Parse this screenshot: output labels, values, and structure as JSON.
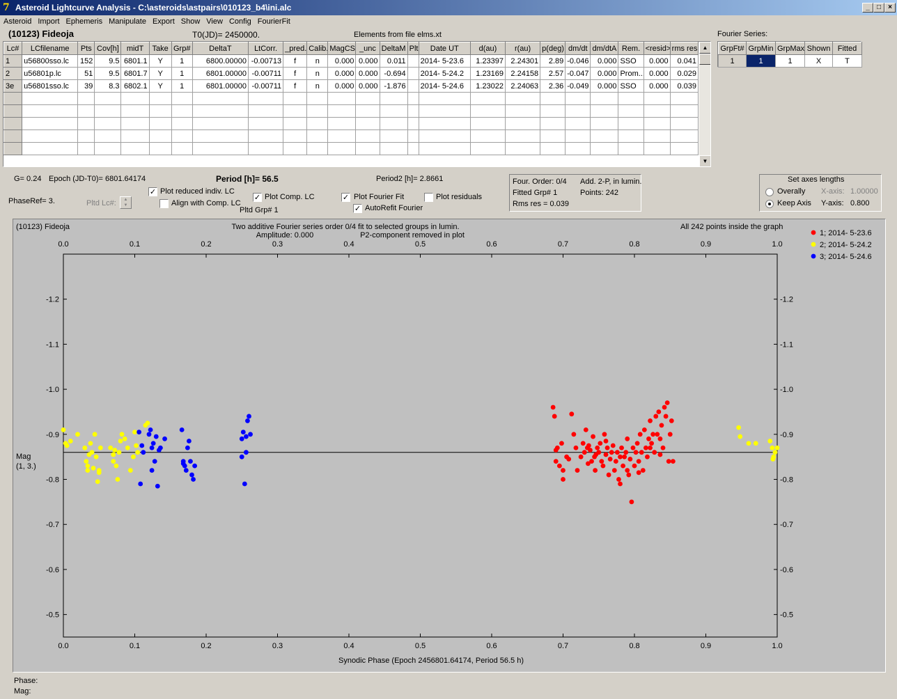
{
  "window": {
    "title": "Asteroid Lightcurve Analysis - C:\\asteroids\\astpairs\\010123_b4\\ini.alc",
    "logo": "7"
  },
  "menu": [
    "Asteroid",
    "Import",
    "Ephemeris",
    "Manipulate",
    "Export",
    "Show",
    "View",
    "Config",
    "FourierFit"
  ],
  "header": {
    "object": "(10123) Fideoja",
    "t0": "T0(JD)= 2450000.",
    "elements": "Elements from file elms.xt",
    "fourier_title": "Fourier Series:"
  },
  "lc_table": {
    "columns": [
      "Lc#",
      "LCfilename",
      "Pts",
      "Cov[h]",
      "midT",
      "Take",
      "Grp#",
      "DeltaT",
      "LtCorr.",
      "_pred.",
      "Calib.",
      "MagCS",
      "_unc",
      "DeltaM",
      "Plt",
      "Date UT",
      "d(au)",
      "r(au)",
      "p(deg)",
      "dm/dt",
      "dm/dtA",
      "Rem.",
      "<resid>",
      "rms res"
    ],
    "rows": [
      [
        "1",
        "u56800sso.lc",
        "152",
        "9.5",
        "6801.1",
        "Y",
        "1",
        "6800.00000",
        "-0.00713",
        "f",
        "n",
        "0.000",
        "0.000",
        "0.011",
        "",
        "2014- 5-23.6",
        "1.23397",
        "2.24301",
        "2.89",
        "-0.046",
        "0.000",
        "SSO",
        "0.000",
        "0.041"
      ],
      [
        "2",
        "u56801p.lc",
        "51",
        "9.5",
        "6801.7",
        "Y",
        "1",
        "6801.00000",
        "-0.00711",
        "f",
        "n",
        "0.000",
        "0.000",
        "-0.694",
        "",
        "2014- 5-24.2",
        "1.23169",
        "2.24158",
        "2.57",
        "-0.047",
        "0.000",
        "Prom...",
        "0.000",
        "0.029"
      ],
      [
        "3e",
        "u56801sso.lc",
        "39",
        "8.3",
        "6802.1",
        "Y",
        "1",
        "6801.00000",
        "-0.00711",
        "f",
        "n",
        "0.000",
        "0.000",
        "-1.876",
        "",
        "2014- 5-24.6",
        "1.23022",
        "2.24063",
        "2.36",
        "-0.049",
        "0.000",
        "SSO",
        "0.000",
        "0.039"
      ]
    ]
  },
  "fourier_table": {
    "columns": [
      "GrpFt#",
      "GrpMin",
      "GrpMax",
      "Shown",
      "Fitted"
    ],
    "row": [
      "1",
      "1",
      "1",
      "X",
      "T"
    ]
  },
  "controls": {
    "g": "G= 0.24",
    "epoch": "Epoch (JD-T0)= 6801.64174",
    "period": "Period [h]= 56.5",
    "period2": "Period2 [h]= 2.8661",
    "phaseref": "PhaseRef= 3.",
    "pltd_lc": "Pltd Lc#:",
    "pltd_grp": "Pltd Grp#  1",
    "plot_reduced": "Plot reduced indiv. LC",
    "align": "Align with Comp. LC",
    "plot_comp": "Plot Comp. LC",
    "plot_fourier": "Plot Fourier Fit",
    "autorefit": "AutoRefit Fourier",
    "plot_resid": "Plot residuals",
    "four_order": "Four. Order:  0/4",
    "add2p": "Add. 2-P, in lumin.",
    "fitted_grp": "Fitted Grp# 1",
    "points": "Points: 242",
    "rms": "Rms res    = 0.039",
    "axes_title": "Set axes lengths",
    "overally": "Overally",
    "keep_axis": "Keep Axis",
    "xaxis_label": "X-axis:",
    "xaxis_val": "1.00000",
    "yaxis_label": "Y-axis:",
    "yaxis_val": "0.800"
  },
  "status": {
    "phase": "Phase:",
    "mag": "Mag:"
  },
  "chart_data": {
    "type": "scatter",
    "object_label": "(10123) Fideoja",
    "title": "Two additive Fourier series order 0/4 fit to selected groups in lumin.",
    "amplitude": "Amplitude: 0.000",
    "p2note": "P2-component removed in plot",
    "inside": "All 242 points inside the graph",
    "xlabel": "Synodic Phase (Epoch 2456801.64174, Period 56.5 h)",
    "ylabel": "Mag",
    "ylabel2": "(1, 3.)",
    "xlim": [
      0,
      1
    ],
    "ylim": [
      -1.3,
      -0.45
    ],
    "y_inverted": true,
    "x_ticks": [
      "0.0",
      "0.1",
      "0.2",
      "0.3",
      "0.4",
      "0.5",
      "0.6",
      "0.7",
      "0.8",
      "0.9",
      "1.0"
    ],
    "y_ticks": [
      "-1.2",
      "-1.1",
      "-1.0",
      "-0.9",
      "-0.8",
      "-0.7",
      "-0.6",
      "-0.5"
    ],
    "fit_line": -0.86,
    "series": [
      {
        "name": "1; 2014- 5-23.6",
        "color": "#ff0000",
        "points": [
          [
            0.686,
            -0.96
          ],
          [
            0.688,
            -0.94
          ],
          [
            0.69,
            -0.865
          ],
          [
            0.692,
            -0.87
          ],
          [
            0.695,
            -0.83
          ],
          [
            0.698,
            -0.88
          ],
          [
            0.7,
            -0.8
          ],
          [
            0.705,
            -0.85
          ],
          [
            0.708,
            -0.845
          ],
          [
            0.712,
            -0.945
          ],
          [
            0.715,
            -0.9
          ],
          [
            0.718,
            -0.87
          ],
          [
            0.72,
            -0.82
          ],
          [
            0.725,
            -0.85
          ],
          [
            0.728,
            -0.88
          ],
          [
            0.73,
            -0.86
          ],
          [
            0.732,
            -0.91
          ],
          [
            0.735,
            -0.835
          ],
          [
            0.736,
            -0.875
          ],
          [
            0.738,
            -0.865
          ],
          [
            0.74,
            -0.84
          ],
          [
            0.742,
            -0.895
          ],
          [
            0.744,
            -0.85
          ],
          [
            0.745,
            -0.82
          ],
          [
            0.748,
            -0.87
          ],
          [
            0.75,
            -0.86
          ],
          [
            0.752,
            -0.88
          ],
          [
            0.754,
            -0.84
          ],
          [
            0.756,
            -0.83
          ],
          [
            0.758,
            -0.9
          ],
          [
            0.76,
            -0.855
          ],
          [
            0.762,
            -0.87
          ],
          [
            0.764,
            -0.81
          ],
          [
            0.766,
            -0.845
          ],
          [
            0.768,
            -0.86
          ],
          [
            0.77,
            -0.875
          ],
          [
            0.772,
            -0.82
          ],
          [
            0.774,
            -0.84
          ],
          [
            0.776,
            -0.86
          ],
          [
            0.778,
            -0.8
          ],
          [
            0.78,
            -0.85
          ],
          [
            0.782,
            -0.87
          ],
          [
            0.784,
            -0.83
          ],
          [
            0.786,
            -0.85
          ],
          [
            0.788,
            -0.86
          ],
          [
            0.79,
            -0.89
          ],
          [
            0.792,
            -0.81
          ],
          [
            0.794,
            -0.845
          ],
          [
            0.796,
            -0.75
          ],
          [
            0.798,
            -0.87
          ],
          [
            0.8,
            -0.83
          ],
          [
            0.802,
            -0.86
          ],
          [
            0.804,
            -0.88
          ],
          [
            0.806,
            -0.84
          ],
          [
            0.808,
            -0.9
          ],
          [
            0.81,
            -0.86
          ],
          [
            0.812,
            -0.82
          ],
          [
            0.814,
            -0.91
          ],
          [
            0.816,
            -0.87
          ],
          [
            0.818,
            -0.85
          ],
          [
            0.82,
            -0.89
          ],
          [
            0.822,
            -0.93
          ],
          [
            0.824,
            -0.88
          ],
          [
            0.826,
            -0.9
          ],
          [
            0.828,
            -0.86
          ],
          [
            0.83,
            -0.94
          ],
          [
            0.832,
            -0.9
          ],
          [
            0.834,
            -0.95
          ],
          [
            0.836,
            -0.89
          ],
          [
            0.838,
            -0.92
          ],
          [
            0.84,
            -0.87
          ],
          [
            0.842,
            -0.96
          ],
          [
            0.844,
            -0.94
          ],
          [
            0.846,
            -0.97
          ],
          [
            0.848,
            -0.84
          ],
          [
            0.85,
            -0.9
          ],
          [
            0.852,
            -0.93
          ],
          [
            0.854,
            -0.84
          ],
          [
            0.69,
            -0.84
          ],
          [
            0.7,
            -0.82
          ],
          [
            0.734,
            -0.87
          ],
          [
            0.746,
            -0.855
          ],
          [
            0.76,
            -0.885
          ],
          [
            0.78,
            -0.79
          ],
          [
            0.79,
            -0.82
          ],
          [
            0.806,
            -0.815
          ],
          [
            0.822,
            -0.87
          ],
          [
            0.836,
            -0.855
          ]
        ]
      },
      {
        "name": "2; 2014- 5-24.2",
        "color": "#ffff00",
        "points": [
          [
            0.0,
            -0.91
          ],
          [
            0.003,
            -0.88
          ],
          [
            0.005,
            -0.875
          ],
          [
            0.01,
            -0.885
          ],
          [
            0.02,
            -0.9
          ],
          [
            0.03,
            -0.87
          ],
          [
            0.032,
            -0.84
          ],
          [
            0.034,
            -0.83
          ],
          [
            0.036,
            -0.855
          ],
          [
            0.038,
            -0.88
          ],
          [
            0.04,
            -0.86
          ],
          [
            0.042,
            -0.825
          ],
          [
            0.044,
            -0.9
          ],
          [
            0.046,
            -0.85
          ],
          [
            0.048,
            -0.795
          ],
          [
            0.05,
            -0.815
          ],
          [
            0.052,
            -0.87
          ],
          [
            0.066,
            -0.87
          ],
          [
            0.07,
            -0.855
          ],
          [
            0.072,
            -0.865
          ],
          [
            0.074,
            -0.83
          ],
          [
            0.076,
            -0.8
          ],
          [
            0.078,
            -0.86
          ],
          [
            0.08,
            -0.885
          ],
          [
            0.082,
            -0.9
          ],
          [
            0.086,
            -0.89
          ],
          [
            0.09,
            -0.87
          ],
          [
            0.094,
            -0.82
          ],
          [
            0.098,
            -0.85
          ],
          [
            0.1,
            -0.905
          ],
          [
            0.102,
            -0.875
          ],
          [
            0.104,
            -0.86
          ],
          [
            0.115,
            -0.92
          ],
          [
            0.118,
            -0.925
          ],
          [
            0.05,
            -0.82
          ],
          [
            0.034,
            -0.82
          ],
          [
            0.07,
            -0.84
          ],
          [
            0.946,
            -0.915
          ],
          [
            0.948,
            -0.895
          ],
          [
            0.96,
            -0.88
          ],
          [
            0.97,
            -0.88
          ],
          [
            0.99,
            -0.885
          ],
          [
            0.993,
            -0.87
          ],
          [
            0.995,
            -0.85
          ],
          [
            0.997,
            -0.86
          ],
          [
            1.0,
            -0.87
          ],
          [
            0.994,
            -0.845
          ]
        ]
      },
      {
        "name": "3; 2014- 5-24.6",
        "color": "#0000ff",
        "points": [
          [
            0.106,
            -0.905
          ],
          [
            0.108,
            -0.79
          ],
          [
            0.11,
            -0.875
          ],
          [
            0.112,
            -0.86
          ],
          [
            0.12,
            -0.9
          ],
          [
            0.122,
            -0.91
          ],
          [
            0.124,
            -0.87
          ],
          [
            0.126,
            -0.88
          ],
          [
            0.128,
            -0.84
          ],
          [
            0.13,
            -0.895
          ],
          [
            0.132,
            -0.785
          ],
          [
            0.134,
            -0.865
          ],
          [
            0.136,
            -0.87
          ],
          [
            0.142,
            -0.89
          ],
          [
            0.166,
            -0.91
          ],
          [
            0.168,
            -0.835
          ],
          [
            0.17,
            -0.83
          ],
          [
            0.172,
            -0.82
          ],
          [
            0.174,
            -0.87
          ],
          [
            0.176,
            -0.885
          ],
          [
            0.178,
            -0.84
          ],
          [
            0.18,
            -0.81
          ],
          [
            0.182,
            -0.8
          ],
          [
            0.184,
            -0.83
          ],
          [
            0.25,
            -0.85
          ],
          [
            0.252,
            -0.905
          ],
          [
            0.254,
            -0.79
          ],
          [
            0.256,
            -0.895
          ],
          [
            0.258,
            -0.93
          ],
          [
            0.26,
            -0.94
          ],
          [
            0.262,
            -0.9
          ],
          [
            0.25,
            -0.89
          ],
          [
            0.124,
            -0.82
          ],
          [
            0.168,
            -0.84
          ],
          [
            0.256,
            -0.86
          ]
        ]
      }
    ]
  }
}
